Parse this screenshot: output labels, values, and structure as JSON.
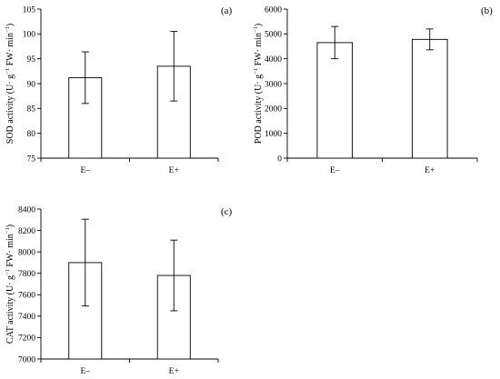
{
  "chart_data": [
    {
      "type": "bar",
      "panel_label": "(a)",
      "categories": [
        "E–",
        "E+"
      ],
      "values": [
        91.2,
        93.5
      ],
      "errors": [
        5.2,
        7.0
      ],
      "ylabel_parts": {
        "prefix": "SOD activity (U· g",
        "exp": "−1",
        "middle": " FW· min",
        "exp2": "−1",
        "suffix": ")"
      },
      "ylim": [
        75,
        105
      ],
      "yticks": [
        75,
        80,
        85,
        90,
        95,
        100,
        105
      ],
      "grid": false,
      "bar_fill": "#ffffff",
      "bar_stroke": "#000000"
    },
    {
      "type": "bar",
      "panel_label": "(b)",
      "categories": [
        "E–",
        "E+"
      ],
      "values": [
        4650,
        4780
      ],
      "errors": [
        650,
        420
      ],
      "ylabel_parts": {
        "prefix": "POD activity (U· g",
        "exp": "−1",
        "middle": " FW· min",
        "exp2": "−1",
        "suffix": ")"
      },
      "ylim": [
        0,
        6000
      ],
      "yticks": [
        0,
        1000,
        2000,
        3000,
        4000,
        5000,
        6000
      ],
      "grid": false,
      "bar_fill": "#ffffff",
      "bar_stroke": "#000000"
    },
    {
      "type": "bar",
      "panel_label": "(c)",
      "categories": [
        "E–",
        "E+"
      ],
      "values": [
        7900,
        7780
      ],
      "errors": [
        405,
        330
      ],
      "ylabel_parts": {
        "prefix": "CAT activity (U· g",
        "exp": "−1",
        "middle": " FW· min",
        "exp2": "−1",
        "suffix": ")"
      },
      "ylim": [
        7000,
        8400
      ],
      "yticks": [
        7000,
        7200,
        7400,
        7600,
        7800,
        8000,
        8200,
        8400
      ],
      "grid": false,
      "bar_fill": "#ffffff",
      "bar_stroke": "#000000"
    }
  ]
}
